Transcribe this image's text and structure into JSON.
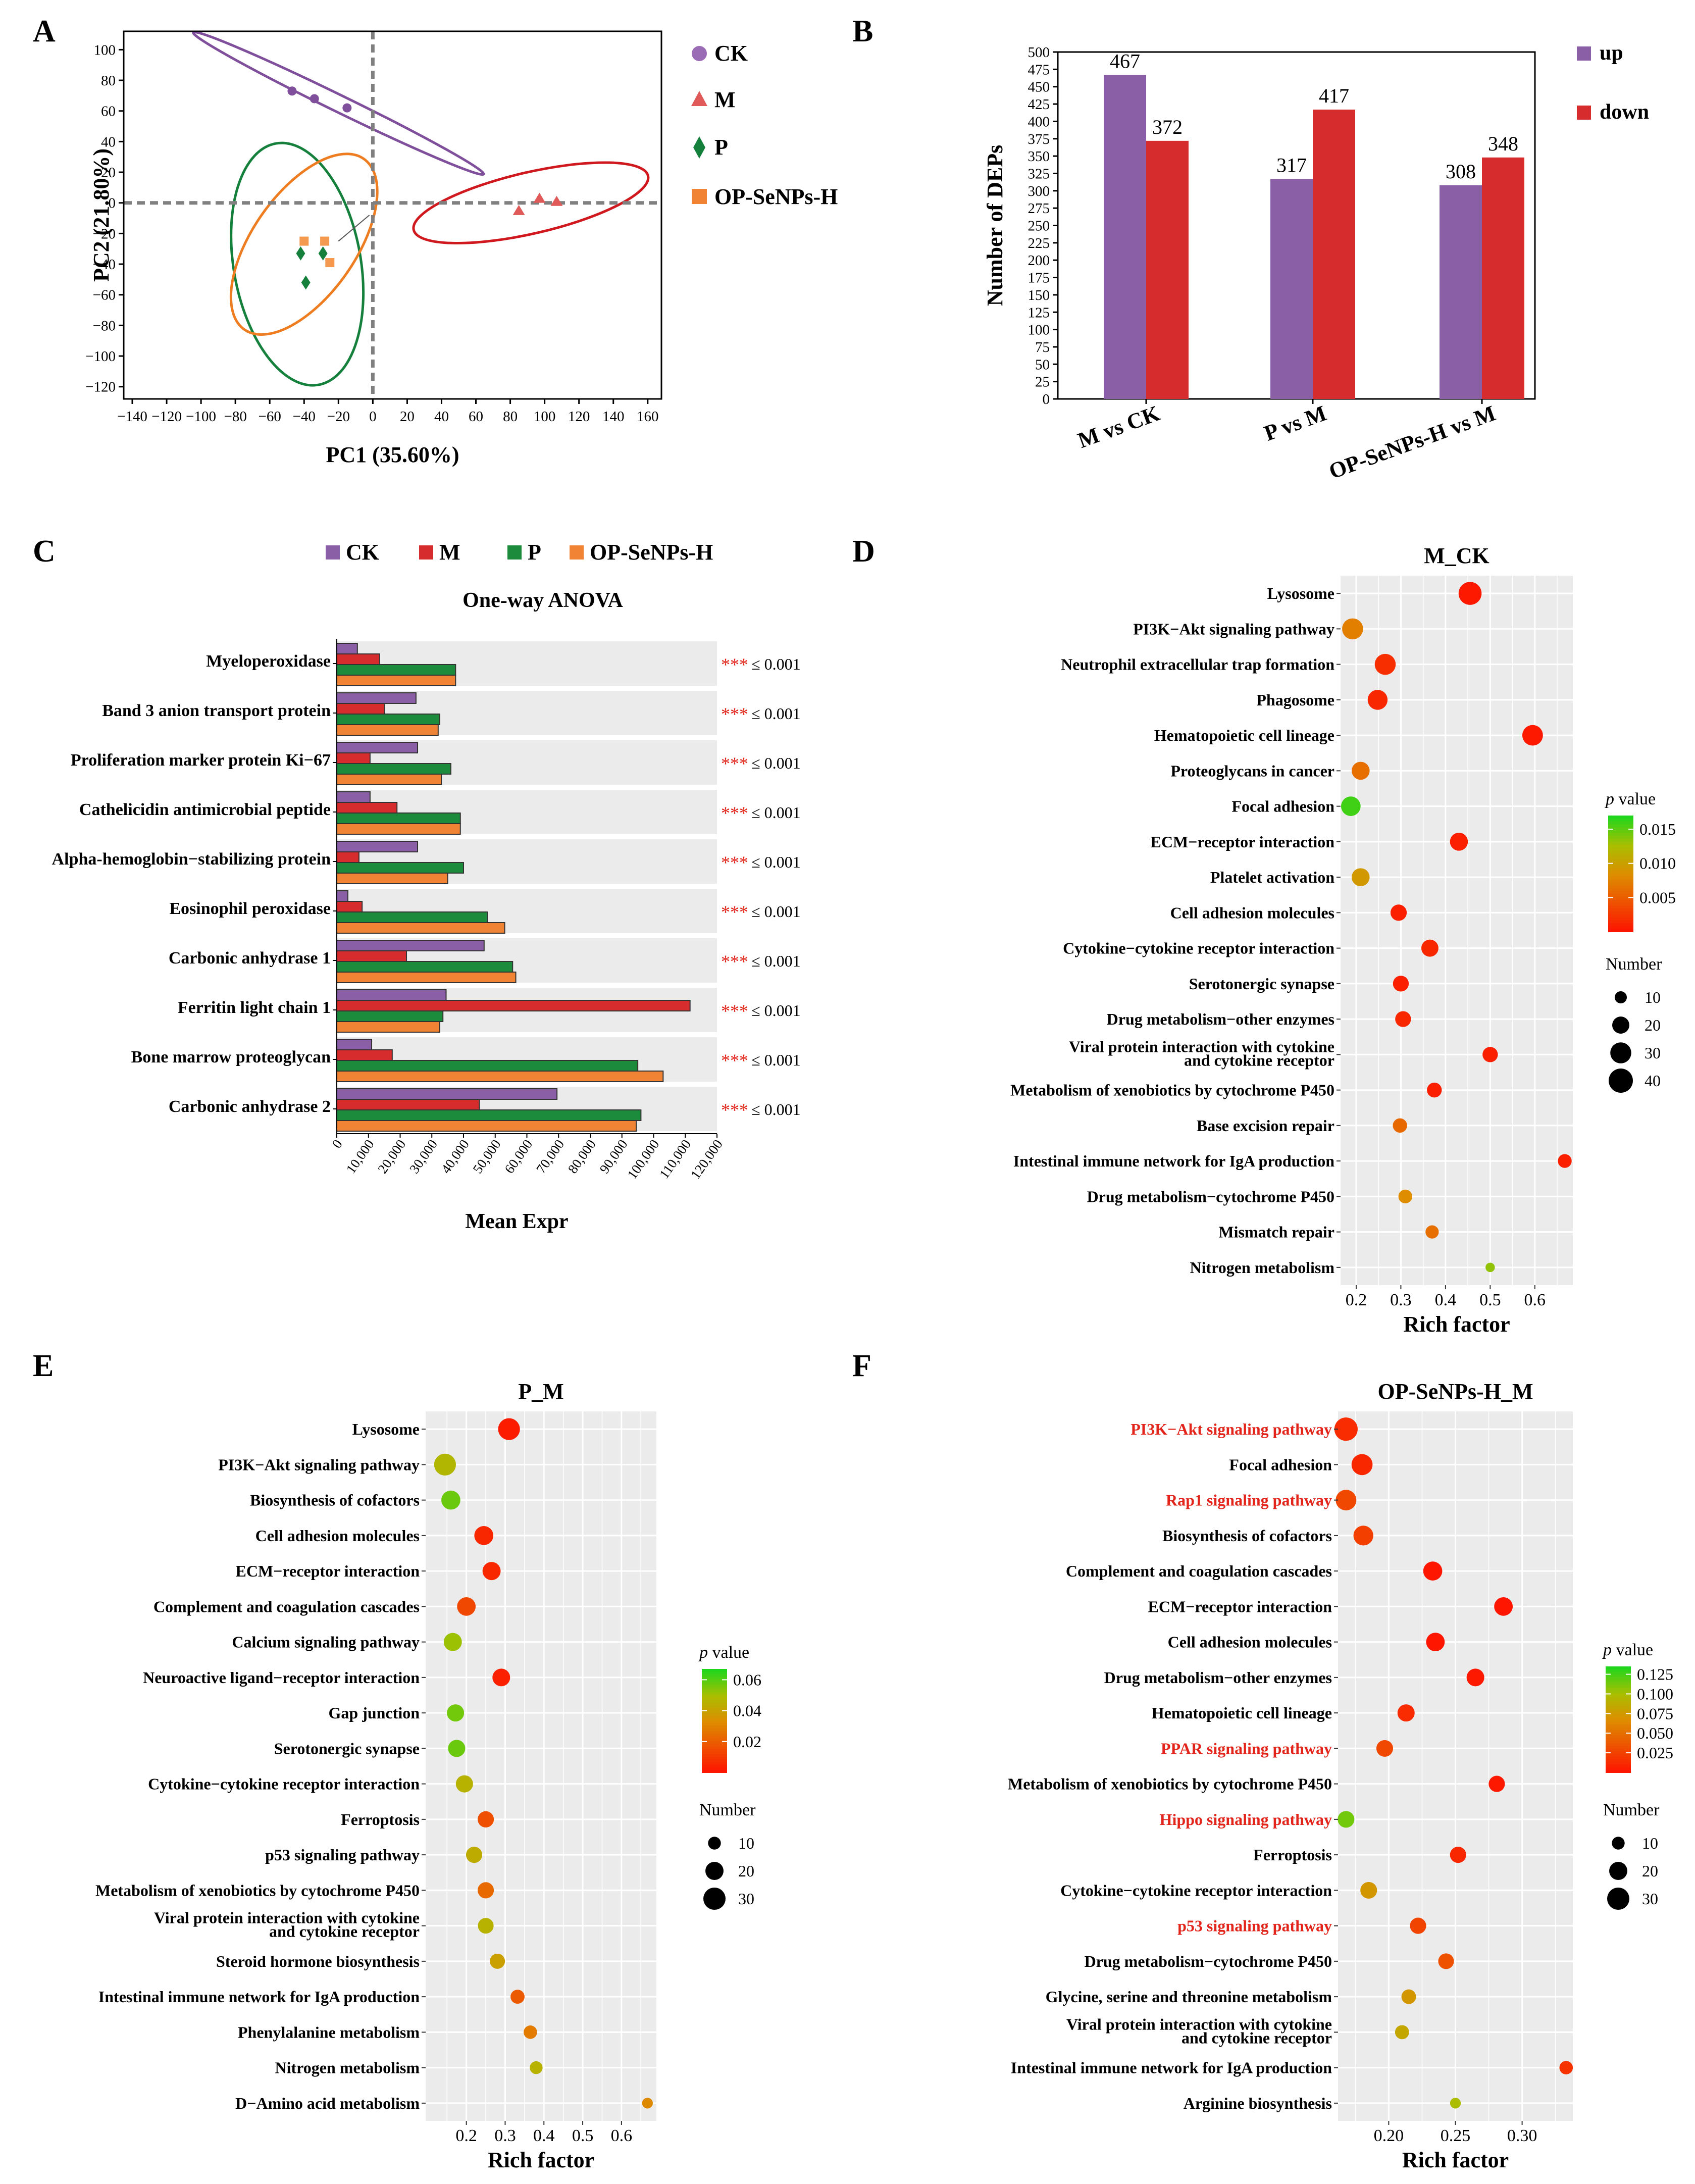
{
  "colors": {
    "ck": "#8b5fa5",
    "m": "#d62c2e",
    "p": "#1c8c3c",
    "op": "#f08434",
    "pca_ck": "#7f4f9c",
    "pca_m": "#d0191f",
    "pca_p": "#14803c",
    "pca_op": "#ee7d22",
    "panel_bg": "#ebebeb",
    "grid": "#ffffff",
    "star": "#e2241b",
    "red_label": "#e2241b"
  },
  "chart_data": [
    {
      "id": "A",
      "type": "scatter",
      "panel_label": "A",
      "xlabel": "PC1 (35.60%)",
      "ylabel": "PC2 (21.80%)",
      "xlim": [
        -145,
        168
      ],
      "ylim": [
        -128,
        112
      ],
      "xticks": [
        -140,
        -120,
        -100,
        -80,
        -60,
        -40,
        -20,
        0,
        20,
        40,
        60,
        80,
        100,
        120,
        140,
        160
      ],
      "yticks": [
        -120,
        -100,
        -80,
        -60,
        -40,
        -20,
        0,
        20,
        40,
        60,
        80,
        100
      ],
      "legend": [
        "CK",
        "M",
        "P",
        "OP-SeNPs-H"
      ],
      "groups": [
        {
          "name": "CK",
          "ellipse": {
            "cx": -20,
            "cy": 65,
            "rx": 94,
            "ry": 5.5,
            "angle": -26
          },
          "points": [
            [
              -47,
              73
            ],
            [
              -34,
              68
            ],
            [
              -15,
              62
            ]
          ]
        },
        {
          "name": "M",
          "ellipse": {
            "cx": 92,
            "cy": 0,
            "rx": 70,
            "ry": 20,
            "angle": 13
          },
          "points": [
            [
              85,
              -5
            ],
            [
              97,
              3
            ],
            [
              107,
              1
            ]
          ]
        },
        {
          "name": "P",
          "ellipse": {
            "cx": -44,
            "cy": -40,
            "rx": 37,
            "ry": 80,
            "angle": 10
          },
          "points": [
            [
              -42,
              -33
            ],
            [
              -29,
              -33
            ],
            [
              -39,
              -52
            ]
          ]
        },
        {
          "name": "OP-SeNPs-H",
          "ellipse": {
            "cx": -40,
            "cy": -27,
            "rx": 30,
            "ry": 68,
            "angle": -35
          },
          "points": [
            [
              -40,
              -25
            ],
            [
              -28,
              -25
            ],
            [
              -25,
              -39
            ]
          ]
        }
      ],
      "annotation_line": [
        [
          -20,
          -25
        ],
        [
          -2,
          -8
        ]
      ]
    },
    {
      "id": "B",
      "type": "bar",
      "panel_label": "B",
      "ylabel": "Number of DEPs",
      "ylim": [
        0,
        500
      ],
      "yticks": [
        0,
        25,
        50,
        75,
        100,
        125,
        150,
        175,
        200,
        225,
        250,
        275,
        300,
        325,
        350,
        375,
        400,
        425,
        450,
        475,
        500
      ],
      "categories": [
        "M vs CK",
        "P vs M",
        "OP-SeNPs-H vs M"
      ],
      "series": [
        {
          "name": "up",
          "values": [
            467,
            317,
            308
          ]
        },
        {
          "name": "down",
          "values": [
            372,
            417,
            348
          ]
        }
      ],
      "value_labels": [
        [
          "467",
          "372"
        ],
        [
          "317",
          "417"
        ],
        [
          "308",
          "348"
        ]
      ],
      "legend": [
        "up",
        "down"
      ]
    },
    {
      "id": "C",
      "type": "bar",
      "orientation": "horizontal",
      "panel_label": "C",
      "title": "One-way ANOVA",
      "xlabel": "Mean Expr",
      "xlim": [
        0,
        120000
      ],
      "xticks": [
        0,
        10000,
        20000,
        30000,
        40000,
        50000,
        60000,
        70000,
        80000,
        90000,
        100000,
        110000,
        120000
      ],
      "xtick_labels": [
        "0",
        "10,000",
        "20,000",
        "30,000",
        "40,000",
        "50,000",
        "60,000",
        "70,000",
        "80,000",
        "90,000",
        "100,000",
        "110,000",
        "120,000"
      ],
      "legend": [
        "CK",
        "M",
        "P",
        "OP-SeNPs-H"
      ],
      "categories": [
        "Myeloperoxidase",
        "Band 3 anion transport protein",
        "Proliferation marker protein Ki−67",
        "Cathelicidin antimicrobial peptide",
        "Alpha-hemoglobin−stabilizing protein",
        "Eosinophil peroxidase",
        "Carbonic anhydrase 1",
        "Ferritin light chain 1",
        "Bone marrow proteoglycan",
        "Carbonic anhydrase 2"
      ],
      "series": [
        {
          "name": "CK",
          "values": [
            6500,
            25000,
            25500,
            10500,
            25500,
            3500,
            46500,
            34500,
            11000,
            69500
          ]
        },
        {
          "name": "M",
          "values": [
            13500,
            15000,
            10500,
            19000,
            7000,
            8000,
            22000,
            111500,
            17500,
            45000
          ]
        },
        {
          "name": "P",
          "values": [
            37500,
            32500,
            36000,
            39000,
            40000,
            47500,
            55500,
            33500,
            95000,
            96000
          ]
        },
        {
          "name": "OP-SeNPs-H",
          "values": [
            37500,
            32000,
            33000,
            39000,
            35000,
            53000,
            56500,
            32500,
            103000,
            94500
          ]
        }
      ],
      "significance_stars": "***",
      "significance_text": "≤ 0.001"
    },
    {
      "id": "D",
      "type": "scatter",
      "subtype": "bubble",
      "panel_label": "D",
      "title": "M_CK",
      "xlabel": "Rich factor",
      "xlim": [
        0.165,
        0.685
      ],
      "xticks": [
        0.2,
        0.3,
        0.4,
        0.5,
        0.6
      ],
      "xtick_labels": [
        "0.2",
        "0.3",
        "0.4",
        "0.5",
        "0.6"
      ],
      "colorbar": {
        "title_italic": "p",
        "title_rest": " value",
        "min": 0.0,
        "max": 0.017,
        "ticks": [
          0.005,
          0.01,
          0.015
        ],
        "tick_labels": [
          "0.005",
          "0.010",
          "0.015"
        ]
      },
      "size_legend": {
        "title": "Number",
        "values": [
          10,
          20,
          30,
          40
        ],
        "labels": [
          "10",
          "20",
          "30",
          "40"
        ],
        "vmax": 40
      },
      "terms": [
        {
          "label": "Lysosome",
          "x": 0.455,
          "p": 0.0005,
          "n": 36
        },
        {
          "label": "PI3K−Akt signaling pathway",
          "x": 0.192,
          "p": 0.0075,
          "n": 30
        },
        {
          "label": "Neutrophil extracellular trap formation",
          "x": 0.265,
          "p": 0.002,
          "n": 30
        },
        {
          "label": "Phagosome",
          "x": 0.248,
          "p": 0.0015,
          "n": 27
        },
        {
          "label": "Hematopoietic cell lineage",
          "x": 0.595,
          "p": 0.0005,
          "n": 29
        },
        {
          "label": "Proteoglycans in cancer",
          "x": 0.21,
          "p": 0.0065,
          "n": 22
        },
        {
          "label": "Focal adhesion",
          "x": 0.188,
          "p": 0.016,
          "n": 26
        },
        {
          "label": "ECM−receptor interaction",
          "x": 0.43,
          "p": 0.001,
          "n": 22
        },
        {
          "label": "Platelet activation",
          "x": 0.21,
          "p": 0.0095,
          "n": 22
        },
        {
          "label": "Cell adhesion molecules",
          "x": 0.295,
          "p": 0.001,
          "n": 18
        },
        {
          "label": "Cytokine−cytokine receptor interaction",
          "x": 0.365,
          "p": 0.0015,
          "n": 20
        },
        {
          "label": "Serotonergic synapse",
          "x": 0.3,
          "p": 0.001,
          "n": 17
        },
        {
          "label": "Drug metabolism−other enzymes",
          "x": 0.305,
          "p": 0.0015,
          "n": 17
        },
        {
          "label": "Viral protein interaction with cytokine|and cytokine receptor",
          "x": 0.5,
          "p": 0.001,
          "n": 16
        },
        {
          "label": "Metabolism of xenobiotics by cytochrome P450",
          "x": 0.375,
          "p": 0.001,
          "n": 15
        },
        {
          "label": "Base excision repair",
          "x": 0.298,
          "p": 0.006,
          "n": 14
        },
        {
          "label": "Intestinal immune network for IgA production",
          "x": 0.667,
          "p": 0.001,
          "n": 13
        },
        {
          "label": "Drug metabolism−cytochrome P450",
          "x": 0.31,
          "p": 0.0085,
          "n": 13
        },
        {
          "label": "Mismatch repair",
          "x": 0.37,
          "p": 0.0065,
          "n": 12
        },
        {
          "label": "Nitrogen metabolism",
          "x": 0.5,
          "p": 0.0135,
          "n": 6
        }
      ]
    },
    {
      "id": "E",
      "type": "scatter",
      "subtype": "bubble",
      "panel_label": "E",
      "title": "P_M",
      "xlabel": "Rich factor",
      "xlim": [
        0.095,
        0.69
      ],
      "xticks": [
        0.2,
        0.3,
        0.4,
        0.5,
        0.6
      ],
      "xtick_labels": [
        "0.2",
        "0.3",
        "0.4",
        "0.5",
        "0.6"
      ],
      "colorbar": {
        "title_italic": "p",
        "title_rest": " value",
        "min": 0.0,
        "max": 0.067,
        "ticks": [
          0.02,
          0.04,
          0.06
        ],
        "tick_labels": [
          "0.02",
          "0.04",
          "0.06"
        ]
      },
      "size_legend": {
        "title": "Number",
        "values": [
          10,
          20,
          30
        ],
        "labels": [
          "10",
          "20",
          "30"
        ],
        "vmax": 30
      },
      "terms": [
        {
          "label": "Lysosome",
          "x": 0.31,
          "p": 0.003,
          "n": 29
        },
        {
          "label": "PI3K−Akt signaling pathway",
          "x": 0.145,
          "p": 0.048,
          "n": 29
        },
        {
          "label": "Biosynthesis of cofactors",
          "x": 0.16,
          "p": 0.058,
          "n": 22
        },
        {
          "label": "Cell adhesion molecules",
          "x": 0.245,
          "p": 0.006,
          "n": 22
        },
        {
          "label": "ECM−receptor interaction",
          "x": 0.265,
          "p": 0.006,
          "n": 20
        },
        {
          "label": "Complement and coagulation cascades",
          "x": 0.2,
          "p": 0.015,
          "n": 21
        },
        {
          "label": "Calcium signaling pathway",
          "x": 0.165,
          "p": 0.052,
          "n": 20
        },
        {
          "label": "Neuroactive ligand−receptor interaction",
          "x": 0.29,
          "p": 0.004,
          "n": 19
        },
        {
          "label": "Gap junction",
          "x": 0.172,
          "p": 0.057,
          "n": 18
        },
        {
          "label": "Serotonergic synapse",
          "x": 0.175,
          "p": 0.058,
          "n": 18
        },
        {
          "label": "Cytokine−cytokine receptor interaction",
          "x": 0.195,
          "p": 0.046,
          "n": 18
        },
        {
          "label": "Ferroptosis",
          "x": 0.25,
          "p": 0.017,
          "n": 16
        },
        {
          "label": "p53 signaling pathway",
          "x": 0.22,
          "p": 0.044,
          "n": 16
        },
        {
          "label": "Metabolism of xenobiotics by cytochrome P450",
          "x": 0.25,
          "p": 0.024,
          "n": 16
        },
        {
          "label": "Viral protein interaction with cytokine|and cytokine receptor",
          "x": 0.25,
          "p": 0.046,
          "n": 15
        },
        {
          "label": "Steroid hormone biosynthesis",
          "x": 0.28,
          "p": 0.04,
          "n": 14
        },
        {
          "label": "Intestinal immune network for IgA production",
          "x": 0.332,
          "p": 0.02,
          "n": 12
        },
        {
          "label": "Phenylalanine metabolism",
          "x": 0.365,
          "p": 0.029,
          "n": 11
        },
        {
          "label": "Nitrogen metabolism",
          "x": 0.38,
          "p": 0.046,
          "n": 10
        },
        {
          "label": "D−Amino acid metabolism",
          "x": 0.667,
          "p": 0.033,
          "n": 7
        }
      ]
    },
    {
      "id": "F",
      "type": "scatter",
      "subtype": "bubble",
      "panel_label": "F",
      "title": "OP-SeNPs-H_M",
      "xlabel": "Rich factor",
      "xlim": [
        0.162,
        0.338
      ],
      "xticks": [
        0.2,
        0.25,
        0.3
      ],
      "xtick_labels": [
        "0.20",
        "0.25",
        "0.30"
      ],
      "colorbar": {
        "title_italic": "p",
        "title_rest": " value",
        "min": 0.0,
        "max": 0.135,
        "ticks": [
          0.025,
          0.05,
          0.075,
          0.1,
          0.125
        ],
        "tick_labels": [
          "0.025",
          "0.050",
          "0.075",
          "0.100",
          "0.125"
        ]
      },
      "size_legend": {
        "title": "Number",
        "values": [
          10,
          20,
          30
        ],
        "labels": [
          "10",
          "20",
          "30"
        ],
        "vmax": 30
      },
      "terms": [
        {
          "label": "PI3K−Akt signaling pathway",
          "x": 0.168,
          "p": 0.015,
          "n": 33,
          "highlight": true
        },
        {
          "label": "Focal adhesion",
          "x": 0.18,
          "p": 0.012,
          "n": 27
        },
        {
          "label": "Rap1 signaling pathway",
          "x": 0.168,
          "p": 0.03,
          "n": 26,
          "highlight": true
        },
        {
          "label": "Biosynthesis of cofactors",
          "x": 0.181,
          "p": 0.025,
          "n": 24
        },
        {
          "label": "Complement and coagulation cascades",
          "x": 0.233,
          "p": 0.003,
          "n": 22
        },
        {
          "label": "ECM−receptor interaction",
          "x": 0.286,
          "p": 0.003,
          "n": 21
        },
        {
          "label": "Cell adhesion molecules",
          "x": 0.235,
          "p": 0.003,
          "n": 21
        },
        {
          "label": "Drug metabolism−other enzymes",
          "x": 0.265,
          "p": 0.004,
          "n": 19
        },
        {
          "label": "Hematopoietic cell lineage",
          "x": 0.213,
          "p": 0.015,
          "n": 18
        },
        {
          "label": "PPAR signaling pathway",
          "x": 0.197,
          "p": 0.03,
          "n": 17,
          "highlight": true
        },
        {
          "label": "Metabolism of xenobiotics by cytochrome P450",
          "x": 0.281,
          "p": 0.004,
          "n": 16
        },
        {
          "label": "Hippo signaling pathway",
          "x": 0.168,
          "p": 0.115,
          "n": 17,
          "highlight": true
        },
        {
          "label": "Ferroptosis",
          "x": 0.252,
          "p": 0.012,
          "n": 16
        },
        {
          "label": "Cytokine−cytokine receptor interaction",
          "x": 0.185,
          "p": 0.075,
          "n": 17
        },
        {
          "label": "p53 signaling pathway",
          "x": 0.222,
          "p": 0.028,
          "n": 16,
          "highlight": true
        },
        {
          "label": "Drug metabolism−cytochrome P450",
          "x": 0.243,
          "p": 0.035,
          "n": 15
        },
        {
          "label": "Glycine, serine and threonine metabolism",
          "x": 0.215,
          "p": 0.075,
          "n": 13
        },
        {
          "label": "Viral protein interaction with cytokine|and cytokine receptor",
          "x": 0.21,
          "p": 0.085,
          "n": 12
        },
        {
          "label": "Intestinal immune network for IgA production",
          "x": 0.333,
          "p": 0.018,
          "n": 11
        },
        {
          "label": "Arginine biosynthesis",
          "x": 0.25,
          "p": 0.1,
          "n": 7
        }
      ]
    }
  ]
}
